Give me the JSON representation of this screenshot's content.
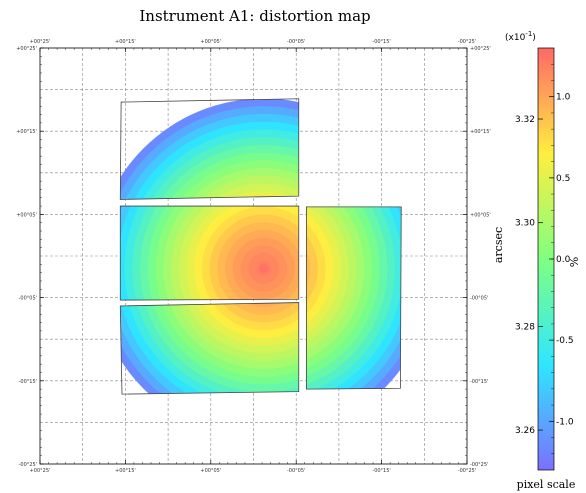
{
  "chart_data": {
    "type": "heatmap",
    "title": "Instrument A1: distortion map",
    "x_tick_labels": [
      "+00°25'",
      "+00°15'",
      "+00°05'",
      "-00°05'",
      "-00°15'",
      "-00°25'"
    ],
    "y_tick_labels": [
      "+00°25'",
      "+00°15'",
      "+00°05'",
      "-00°05'",
      "-00°15'",
      "-00°25'"
    ],
    "xlim": [
      25,
      -25
    ],
    "ylim": [
      -25,
      25
    ],
    "grid": true,
    "center": {
      "x": -1.2,
      "y": -1.5
    },
    "value_range": [
      -1.3,
      1.3
    ],
    "chips": [
      {
        "name": "chip-top",
        "corners": [
          [
            15.5,
            18.5
          ],
          [
            -5.3,
            18.9
          ],
          [
            -5.3,
            7.2
          ],
          [
            15.6,
            6.8
          ]
        ]
      },
      {
        "name": "chip-middle",
        "corners": [
          [
            15.6,
            6.0
          ],
          [
            -5.3,
            6.0
          ],
          [
            -5.3,
            -5.2
          ],
          [
            15.6,
            -5.3
          ]
        ]
      },
      {
        "name": "chip-bottom",
        "corners": [
          [
            15.6,
            -6.0
          ],
          [
            -5.3,
            -5.6
          ],
          [
            -5.3,
            -16.3
          ],
          [
            15.4,
            -16.6
          ]
        ]
      },
      {
        "name": "chip-right",
        "corners": [
          [
            -6.2,
            5.9
          ],
          [
            -17.3,
            5.9
          ],
          [
            -17.2,
            -15.9
          ],
          [
            -6.2,
            -16.0
          ]
        ]
      }
    ],
    "colorbar": {
      "label_left": "arcsec",
      "label_right": "%",
      "label_bottom": "pixel scale",
      "multiplier": "(x10",
      "multiplier_exp": "-1",
      "multiplier_close": ")",
      "left_ticks": [
        {
          "value": 3.32,
          "label": "3.32"
        },
        {
          "value": 3.3,
          "label": "3.30"
        },
        {
          "value": 3.28,
          "label": "3.28"
        },
        {
          "value": 3.26,
          "label": "3.26"
        }
      ],
      "right_ticks": [
        {
          "value": 1.0,
          "label": "1.0"
        },
        {
          "value": 0.5,
          "label": "0.5"
        },
        {
          "value": 0.0,
          "label": "0.0"
        },
        {
          "value": -0.5,
          "label": "-0.5"
        },
        {
          "value": -1.0,
          "label": "-1.0"
        }
      ],
      "arcsec_range": [
        3.2523,
        3.3337
      ],
      "colors": [
        "#7b70ff",
        "#2fe6ff",
        "#80ff80",
        "#ffee40",
        "#ff6868"
      ]
    }
  }
}
